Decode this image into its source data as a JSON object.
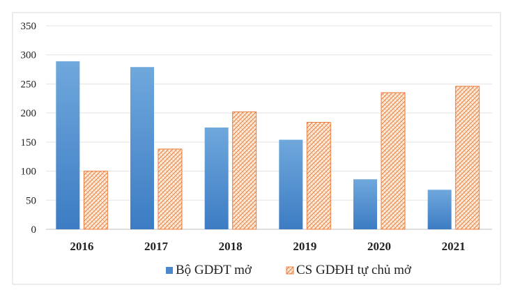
{
  "chart_data": {
    "type": "bar",
    "categories": [
      "2016",
      "2017",
      "2018",
      "2019",
      "2020",
      "2021"
    ],
    "series": [
      {
        "name": "Bộ GDĐT mở",
        "values": [
          289,
          279,
          175,
          154,
          86,
          68
        ],
        "color": "#4a88c9"
      },
      {
        "name": "CS GDĐH tự chủ mở",
        "values": [
          100,
          138,
          202,
          184,
          235,
          246
        ],
        "color": "#e87d3e"
      }
    ],
    "ylim": [
      0,
      350
    ],
    "yticks": [
      "0",
      "50",
      "100",
      "150",
      "200",
      "250",
      "300",
      "350"
    ],
    "grid": true,
    "legend_position": "bottom"
  }
}
